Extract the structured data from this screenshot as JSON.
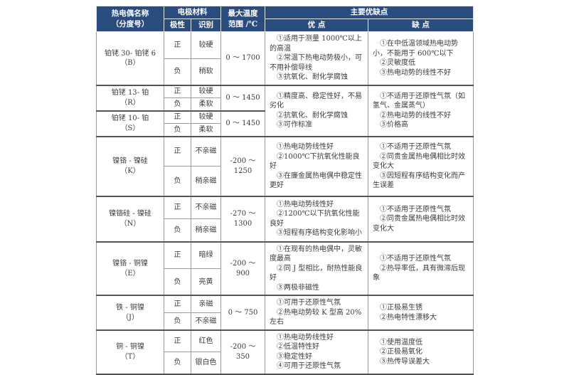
{
  "colors": {
    "header_bg": "#2b4c7e",
    "header_fg": "#ffffff",
    "grid": "#9b9b9b",
    "group_border": "#555555",
    "text": "#3b3b3b"
  },
  "header": {
    "name1": "热电偶名称",
    "name2": "（分度号）",
    "electrode": "电极材料",
    "polarity": "极性",
    "identify": "识别",
    "temp1": "最大温度",
    "temp2": "范围 /℃",
    "pros_cons": "主要优缺点",
    "pros": "优 点",
    "cons": "缺 点"
  },
  "groups": [
    {
      "name": "铂铑 30- 铂铑 6",
      "code": "（B）",
      "pos_pol": "正",
      "pos_id": "较硬",
      "neg_pol": "负",
      "neg_id": "稍软",
      "temp": "0 ～ 1700",
      "pros": [
        "①适用于测量 1000℃以上的高温",
        "②常温下热电动势极小，可不用补偿导线",
        "③抗氧化、耐化学腐蚀"
      ],
      "cons": [
        "①在中低温领域热电动势小，不能用于 600℃以下",
        "②灵敏度低",
        "③热电动势的线性不好"
      ]
    },
    {
      "name": "铂铑 13- 铂",
      "code": "（R）",
      "pos_pol": "正",
      "pos_id": "较硬",
      "neg_pol": "负",
      "neg_id": "柔软",
      "temp": "0 ～ 1450",
      "pros": [
        "①精度高、稳定性好，不易劣化",
        "②抗氧化、耐化学腐蚀",
        "③可作标准"
      ],
      "cons": [
        "①不适用于还原性气氛（如氢气、金属蒸气）",
        "②热电动势的线性不好",
        "③价格高"
      ]
    },
    {
      "name": "铂铑 10- 铂",
      "code": "（S）",
      "pos_pol": "正",
      "pos_id": "较硬",
      "neg_pol": "负",
      "neg_id": "柔软",
      "temp": "0 ～ 1450"
    },
    {
      "name": "镍铬 - 镍硅",
      "code": "（K）",
      "pos_pol": "正",
      "pos_id": "不亲磁",
      "neg_pol": "负",
      "neg_id": "稍亲磁",
      "temp": "-200 ～ 1250",
      "pros": [
        "①热电动势线性好",
        "②1000℃下抗氧化性能良好",
        "③在廉金属热电偶中稳定性更好"
      ],
      "cons": [
        "①不适用于还原性气氛",
        "②同贵金属热电偶相比时效变化大",
        "③因短程有序结构变化而产生误差"
      ]
    },
    {
      "name": "镍铬硅 - 镍硅",
      "code": "（N）",
      "pos_pol": "正",
      "pos_id": "不亲磁",
      "neg_pol": "负",
      "neg_id": "稍亲磁",
      "temp": "-270 ～ 1300",
      "pros": [
        "①热电动势线性好",
        "②1200℃以下抗氧化性能良好",
        "③短程有序结构变化影响小"
      ],
      "cons": [
        "①不适用于还原性气氛",
        "②同贵金属热电偶相比时效变化大"
      ]
    },
    {
      "name": "镍铬 - 铜镍",
      "code": "（E）",
      "pos_pol": "正",
      "pos_id": "暗绿",
      "neg_pol": "负",
      "neg_id": "亮黄",
      "temp": "-200 ～ 900",
      "pros": [
        "①在现有的热电偶中，灵敏度最高",
        "②同 J 型相比，耐热性能良好",
        "③两极非磁性"
      ],
      "cons": [
        "①不适用于还原性气氛",
        "②热导率低，具有微滞后现象"
      ]
    },
    {
      "name": "铁 - 铜镍",
      "code": "（J）",
      "pos_pol": "正",
      "pos_id": "亲磁",
      "neg_pol": "负",
      "neg_id": "不亲磁",
      "temp": "0 ～ 750",
      "pros": [
        "①可用于还原性气氛",
        "②热电动势较 K 型高 20% 左右"
      ],
      "cons": [
        "①正极易生锈",
        "②热电特性漂移大"
      ]
    },
    {
      "name": "铜 - 铜镍",
      "code": "（T）",
      "pos_pol": "正",
      "pos_id": "红色",
      "neg_pol": "负",
      "neg_id": "银白色",
      "temp": "-200 ～ 350",
      "pros": [
        "①热电动势线性好",
        "②低温特性好",
        "③稳定性好",
        "④可用于还原性气氛"
      ],
      "cons": [
        "①使用温度低",
        "②正极易氧化",
        "③热传导误差大"
      ]
    }
  ]
}
